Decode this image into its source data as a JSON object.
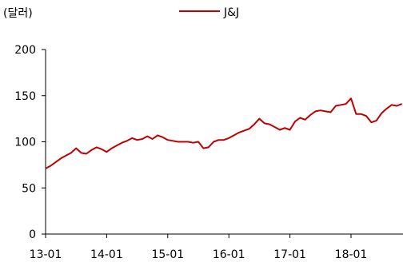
{
  "chart_data": {
    "type": "line",
    "unit_label": "(달러)",
    "legend_position": "top-center",
    "grid": false,
    "ylim": [
      0,
      200
    ],
    "yticks": [
      0,
      50,
      100,
      150,
      200
    ],
    "xticks": [
      "13-01",
      "14-01",
      "15-01",
      "16-01",
      "17-01",
      "18-01"
    ],
    "xlim": [
      "2013-01",
      "2018-11"
    ],
    "series": [
      {
        "name": "J&J",
        "color": "#c00000",
        "points": [
          [
            "2013-01",
            71
          ],
          [
            "2013-02",
            74
          ],
          [
            "2013-03",
            78
          ],
          [
            "2013-04",
            82
          ],
          [
            "2013-05",
            85
          ],
          [
            "2013-06",
            88
          ],
          [
            "2013-07",
            93
          ],
          [
            "2013-08",
            88
          ],
          [
            "2013-09",
            87
          ],
          [
            "2013-10",
            91
          ],
          [
            "2013-11",
            94
          ],
          [
            "2013-12",
            92
          ],
          [
            "2014-01",
            89
          ],
          [
            "2014-02",
            93
          ],
          [
            "2014-03",
            96
          ],
          [
            "2014-04",
            99
          ],
          [
            "2014-05",
            101
          ],
          [
            "2014-06",
            104
          ],
          [
            "2014-07",
            102
          ],
          [
            "2014-08",
            103
          ],
          [
            "2014-09",
            106
          ],
          [
            "2014-10",
            103
          ],
          [
            "2014-11",
            107
          ],
          [
            "2014-12",
            105
          ],
          [
            "2015-01",
            102
          ],
          [
            "2015-02",
            101
          ],
          [
            "2015-03",
            100
          ],
          [
            "2015-04",
            100
          ],
          [
            "2015-05",
            100
          ],
          [
            "2015-06",
            99
          ],
          [
            "2015-07",
            100
          ],
          [
            "2015-08",
            93
          ],
          [
            "2015-09",
            94
          ],
          [
            "2015-10",
            100
          ],
          [
            "2015-11",
            102
          ],
          [
            "2015-12",
            102
          ],
          [
            "2016-01",
            104
          ],
          [
            "2016-02",
            107
          ],
          [
            "2016-03",
            110
          ],
          [
            "2016-04",
            112
          ],
          [
            "2016-05",
            114
          ],
          [
            "2016-06",
            119
          ],
          [
            "2016-07",
            125
          ],
          [
            "2016-08",
            120
          ],
          [
            "2016-09",
            119
          ],
          [
            "2016-10",
            116
          ],
          [
            "2016-11",
            113
          ],
          [
            "2016-12",
            115
          ],
          [
            "2017-01",
            113
          ],
          [
            "2017-02",
            122
          ],
          [
            "2017-03",
            126
          ],
          [
            "2017-04",
            124
          ],
          [
            "2017-05",
            129
          ],
          [
            "2017-06",
            133
          ],
          [
            "2017-07",
            134
          ],
          [
            "2017-08",
            133
          ],
          [
            "2017-09",
            132
          ],
          [
            "2017-10",
            139
          ],
          [
            "2017-11",
            140
          ],
          [
            "2017-12",
            141
          ],
          [
            "2018-01",
            147
          ],
          [
            "2018-02",
            130
          ],
          [
            "2018-03",
            130
          ],
          [
            "2018-04",
            128
          ],
          [
            "2018-05",
            121
          ],
          [
            "2018-06",
            123
          ],
          [
            "2018-07",
            131
          ],
          [
            "2018-08",
            136
          ],
          [
            "2018-09",
            140
          ],
          [
            "2018-10",
            139
          ],
          [
            "2018-11",
            141
          ]
        ]
      }
    ]
  }
}
